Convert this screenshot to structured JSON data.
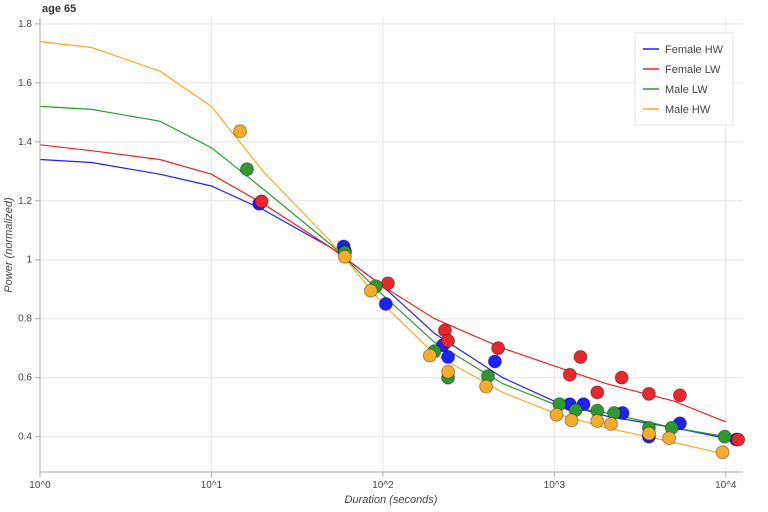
{
  "chart_data": {
    "type": "line-scatter",
    "title": "age 65",
    "x_label": "Duration (seconds)",
    "y_label": "Power (normalized)",
    "x_log": true,
    "grid": true,
    "legend_position": "top-right",
    "xlim": [
      1,
      12600
    ],
    "ylim": [
      0.28,
      1.82
    ],
    "xticks": [
      {
        "value": 1,
        "label": "10^0"
      },
      {
        "value": 10,
        "label": "10^1"
      },
      {
        "value": 100,
        "label": "10^2"
      },
      {
        "value": 1000,
        "label": "10^3"
      },
      {
        "value": 10000,
        "label": "10^4"
      }
    ],
    "yticks": [
      0.4,
      0.6,
      0.8,
      1,
      1.2,
      1.4,
      1.6,
      1.8
    ],
    "series": [
      {
        "name": "Female HW",
        "color": "#1f1fff",
        "line": {
          "x": [
            1,
            2,
            5,
            10,
            20,
            50,
            100,
            200,
            500,
            1000,
            2000,
            5000,
            11000
          ],
          "y": [
            1.34,
            1.33,
            1.29,
            1.25,
            1.17,
            1.04,
            0.91,
            0.75,
            0.6,
            0.52,
            0.47,
            0.43,
            0.39
          ]
        },
        "points": {
          "x": [
            19,
            59,
            60,
            104,
            224,
            240,
            450,
            1230,
            1480,
            2500,
            3560,
            5400,
            11500
          ],
          "y": [
            1.19,
            1.045,
            1.03,
            0.85,
            0.71,
            0.67,
            0.655,
            0.51,
            0.51,
            0.48,
            0.4,
            0.445,
            0.39
          ]
        }
      },
      {
        "name": "Female LW",
        "color": "#e8262b",
        "line": {
          "x": [
            1,
            2,
            5,
            10,
            20,
            50,
            100,
            200,
            500,
            1000,
            2000,
            5000,
            10000
          ],
          "y": [
            1.39,
            1.37,
            1.34,
            1.29,
            1.19,
            1.04,
            0.91,
            0.8,
            0.7,
            0.64,
            0.58,
            0.52,
            0.45
          ]
        },
        "points": {
          "x": [
            19.6,
            107,
            230,
            240,
            470,
            1230,
            1420,
            1780,
            2470,
            3560,
            5400,
            11800
          ],
          "y": [
            1.198,
            0.92,
            0.76,
            0.725,
            0.7,
            0.61,
            0.67,
            0.55,
            0.6,
            0.545,
            0.54,
            0.39
          ]
        }
      },
      {
        "name": "Male LW",
        "color": "#2e9a2e",
        "line": {
          "x": [
            1,
            2,
            5,
            10,
            20,
            50,
            100,
            200,
            500,
            1000,
            2000,
            5000,
            10000
          ],
          "y": [
            1.52,
            1.51,
            1.47,
            1.38,
            1.24,
            1.05,
            0.88,
            0.72,
            0.58,
            0.51,
            0.48,
            0.43,
            0.4
          ]
        },
        "points": {
          "x": [
            16.1,
            60,
            91,
            200,
            240,
            410,
            1070,
            1330,
            1780,
            2230,
            3560,
            4840,
            9860
          ],
          "y": [
            1.307,
            1.025,
            0.91,
            0.69,
            0.6,
            0.605,
            0.51,
            0.49,
            0.488,
            0.48,
            0.43,
            0.43,
            0.4
          ]
        }
      },
      {
        "name": "Male HW",
        "color": "#f5ac2a",
        "line": {
          "x": [
            1,
            2,
            5,
            10,
            20,
            50,
            100,
            200,
            500,
            1000,
            2000,
            5000,
            10000
          ],
          "y": [
            1.74,
            1.72,
            1.64,
            1.52,
            1.3,
            1.06,
            0.85,
            0.68,
            0.55,
            0.48,
            0.43,
            0.38,
            0.34
          ]
        },
        "points": {
          "x": [
            14.7,
            60,
            85,
            188,
            240,
            400,
            1030,
            1260,
            1780,
            2140,
            3570,
            4670,
            9570
          ],
          "y": [
            1.436,
            1.01,
            0.895,
            0.675,
            0.62,
            0.57,
            0.474,
            0.455,
            0.453,
            0.443,
            0.41,
            0.395,
            0.347
          ]
        }
      }
    ]
  }
}
